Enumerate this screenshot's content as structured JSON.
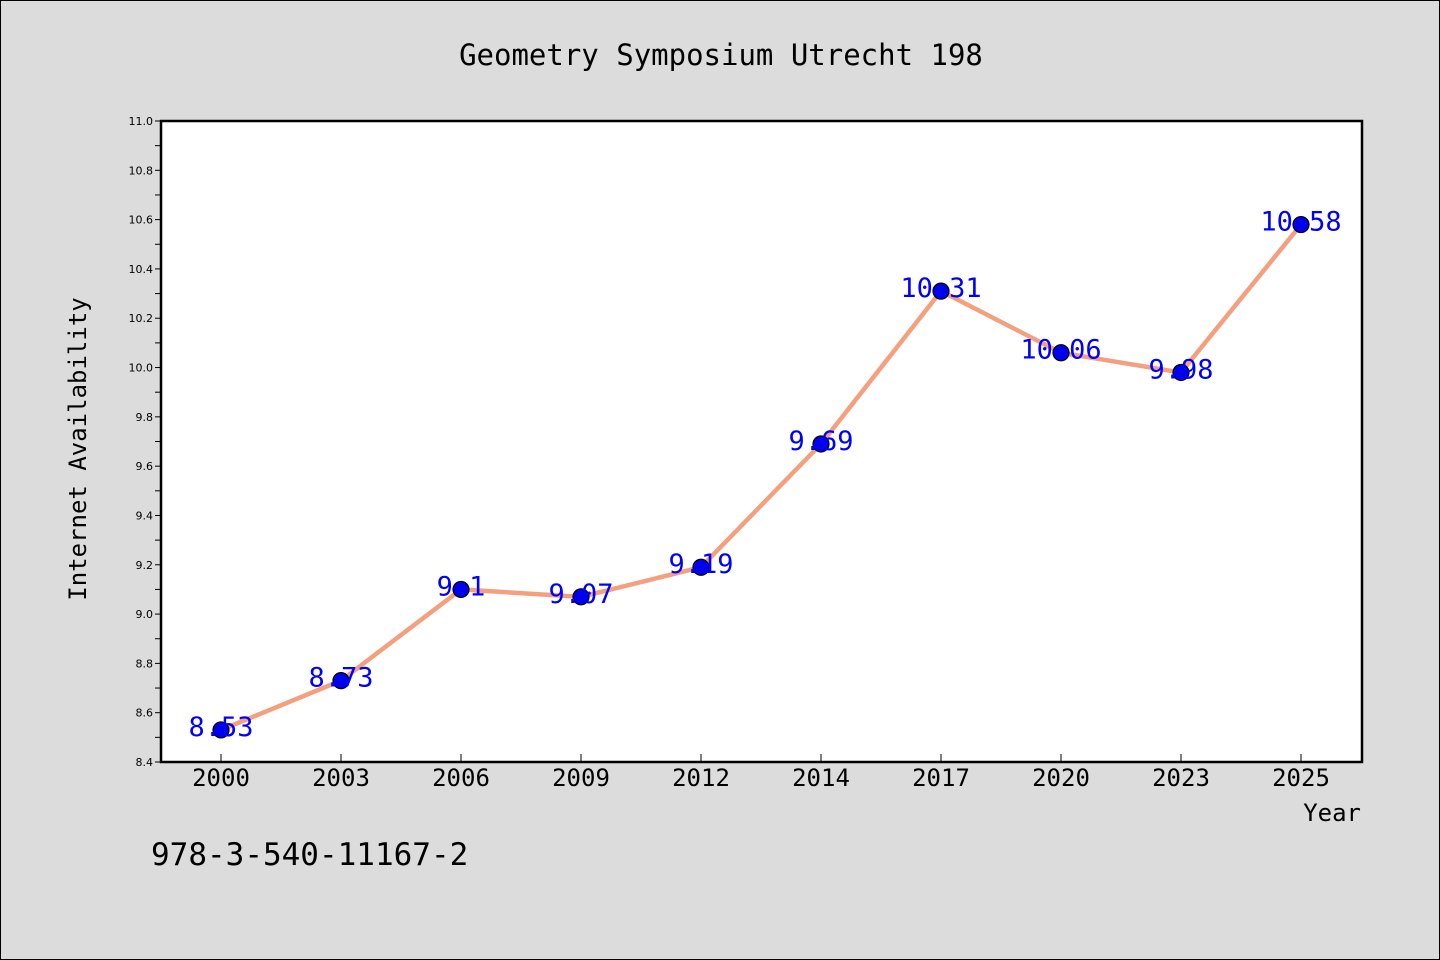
{
  "chart_data": {
    "type": "line",
    "title": "Geometry Symposium Utrecht 198",
    "xlabel": "Year",
    "ylabel": "Internet Availability",
    "categories": [
      "2000",
      "2003",
      "2006",
      "2009",
      "2012",
      "2014",
      "2017",
      "2020",
      "2023",
      "2025"
    ],
    "series": [
      {
        "values": [
          8.53,
          8.73,
          9.1,
          9.07,
          9.19,
          9.69,
          10.31,
          10.06,
          9.98,
          10.58
        ],
        "data_labels": [
          "8.53",
          "8.73",
          "9.1",
          "9.07",
          "9.19",
          "9.69",
          "10.31",
          "10.06",
          "9.98",
          "10.58"
        ],
        "line_color": "#f4a07f",
        "marker_color": "#0000ee"
      }
    ],
    "ylim": [
      8.4,
      11.0
    ],
    "yticks": [
      "8.4",
      "8.6",
      "8.8",
      "9.0",
      "9.2",
      "9.4",
      "9.6",
      "9.8",
      "10.0",
      "10.2",
      "10.4",
      "10.6",
      "10.8",
      "11.0"
    ],
    "grid": false,
    "legend": "none"
  },
  "footer": {
    "isbn": "978-3-540-11167-2"
  },
  "colors": {
    "background": "#dcdcdc",
    "plot_background": "#ffffff",
    "data_label": "#0000ff"
  }
}
